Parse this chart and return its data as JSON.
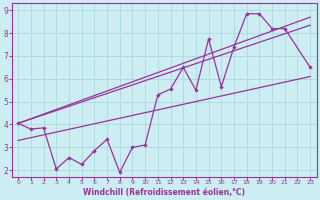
{
  "xlabel": "Windchill (Refroidissement éolien,°C)",
  "bg_color": "#cceef2",
  "grid_color": "#aad8de",
  "line_color": "#993399",
  "xlim": [
    -0.5,
    23.5
  ],
  "ylim": [
    1.7,
    9.3
  ],
  "xticks": [
    0,
    1,
    2,
    3,
    4,
    5,
    6,
    7,
    8,
    9,
    10,
    11,
    12,
    13,
    14,
    15,
    16,
    17,
    18,
    19,
    20,
    21,
    22,
    23
  ],
  "yticks": [
    2,
    3,
    4,
    5,
    6,
    7,
    8,
    9
  ],
  "zigzag_x": [
    0,
    1,
    2,
    3,
    4,
    5,
    6,
    7,
    8,
    9,
    10,
    11,
    12,
    13,
    14,
    15,
    16,
    17,
    18,
    19,
    20,
    21,
    23
  ],
  "zigzag_y": [
    4.05,
    3.8,
    3.85,
    2.05,
    2.55,
    2.25,
    2.85,
    3.35,
    1.9,
    3.0,
    3.1,
    5.3,
    5.55,
    6.5,
    5.5,
    7.75,
    5.65,
    7.4,
    8.85,
    8.85,
    8.2,
    8.2,
    6.5
  ],
  "upper_line1_x": [
    0,
    23
  ],
  "upper_line1_y": [
    4.05,
    8.7
  ],
  "upper_line2_x": [
    0,
    23
  ],
  "upper_line2_y": [
    4.05,
    8.35
  ],
  "lower_line_x": [
    0,
    23
  ],
  "lower_line_y": [
    3.3,
    6.1
  ]
}
